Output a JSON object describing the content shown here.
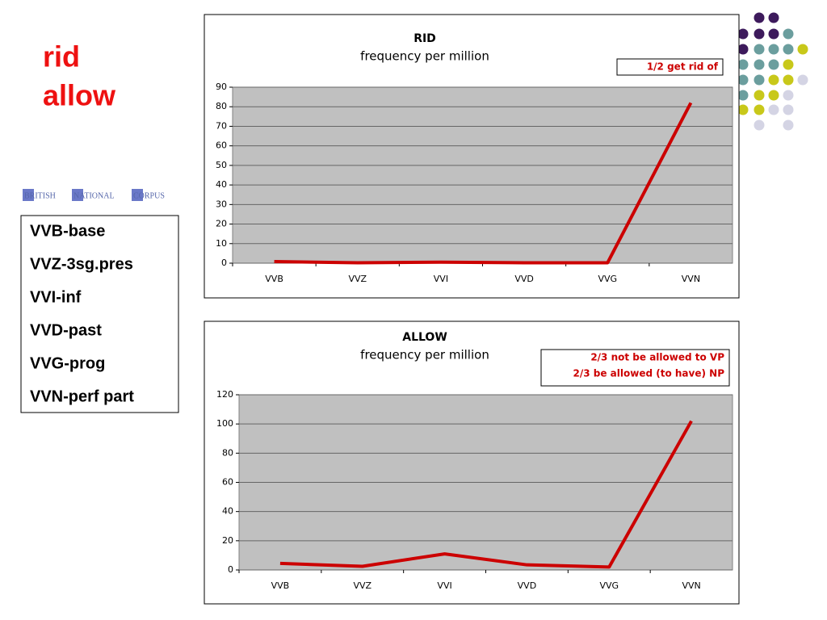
{
  "slide": {
    "title": [
      "rid",
      "allow"
    ],
    "logo": [
      "BRITISH",
      "NATIONAL",
      "CORPUS"
    ],
    "tags": [
      "VVB-base",
      "VVZ-3sg.pres",
      "VVI-inf",
      "VVD-past",
      "VVG-prog",
      "VVN-perf part"
    ]
  },
  "chart_data": [
    {
      "type": "line",
      "title": "RID",
      "subtitle": "frequency per million",
      "annotations": [
        "1/2 get rid of"
      ],
      "categories": [
        "VVB",
        "VVZ",
        "VVI",
        "VVD",
        "VVG",
        "VVN"
      ],
      "values": [
        0.8,
        0.2,
        0.5,
        0.2,
        0.2,
        82
      ],
      "color": "#cc0000",
      "ylim": [
        0,
        90
      ],
      "yticks": [
        0,
        10,
        20,
        30,
        40,
        50,
        60,
        70,
        80,
        90
      ],
      "grid": true
    },
    {
      "type": "line",
      "title": "ALLOW",
      "subtitle": "frequency per million",
      "annotations": [
        "2/3 not be allowed to VP",
        "2/3 be allowed (to have) NP"
      ],
      "categories": [
        "VVB",
        "VVZ",
        "VVI",
        "VVD",
        "VVG",
        "VVN"
      ],
      "values": [
        4.5,
        2.5,
        11,
        3.5,
        2,
        102
      ],
      "color": "#cc0000",
      "ylim": [
        0,
        120
      ],
      "yticks": [
        0,
        20,
        40,
        60,
        80,
        100,
        120
      ],
      "grid": true
    }
  ]
}
